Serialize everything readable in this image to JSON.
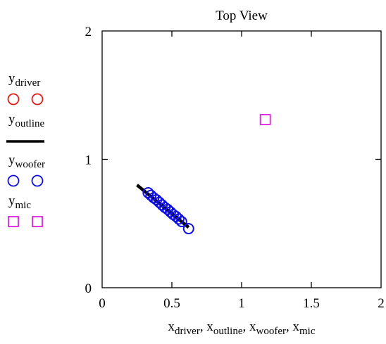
{
  "chart_data": {
    "type": "scatter",
    "title": "Top View",
    "xlim": [
      0,
      2
    ],
    "ylim": [
      0,
      2
    ],
    "x_ticks": [
      {
        "value": 0,
        "label": "0"
      },
      {
        "value": 0.5,
        "label": "0.5"
      },
      {
        "value": 1,
        "label": "1"
      },
      {
        "value": 1.5,
        "label": "1.5"
      },
      {
        "value": 2,
        "label": "2"
      }
    ],
    "y_ticks": [
      {
        "value": 0,
        "label": "0"
      },
      {
        "value": 1,
        "label": "1"
      },
      {
        "value": 2,
        "label": "2"
      }
    ],
    "xlabel_parts": [
      {
        "base": "x",
        "sub": "driver",
        "sep": ", "
      },
      {
        "base": "x",
        "sub": "outline",
        "sep": ", "
      },
      {
        "base": "x",
        "sub": "woofer",
        "sep": ", "
      },
      {
        "base": "x",
        "sub": "mic",
        "sep": ""
      }
    ],
    "legend_placement": "left",
    "grid": false,
    "series": [
      {
        "name": "y",
        "name_sub": "driver",
        "marker": "circle",
        "color": "#e0201b",
        "x": [],
        "y": []
      },
      {
        "name": "y",
        "name_sub": "outline",
        "marker": "line",
        "color": "#000000",
        "x": [
          0.25,
          0.62
        ],
        "y": [
          0.8,
          0.47
        ]
      },
      {
        "name": "y",
        "name_sub": "woofer",
        "marker": "circle",
        "color": "#1010e0",
        "x": [
          0.33,
          0.35,
          0.37,
          0.39,
          0.41,
          0.43,
          0.45,
          0.47,
          0.49,
          0.51,
          0.53,
          0.55,
          0.57,
          0.62
        ],
        "y": [
          0.74,
          0.72,
          0.7,
          0.685,
          0.665,
          0.645,
          0.625,
          0.61,
          0.59,
          0.57,
          0.555,
          0.535,
          0.515,
          0.46
        ]
      },
      {
        "name": "y",
        "name_sub": "mic",
        "marker": "square",
        "color": "#e020e0",
        "x": [
          1.17
        ],
        "y": [
          1.31
        ]
      }
    ]
  }
}
